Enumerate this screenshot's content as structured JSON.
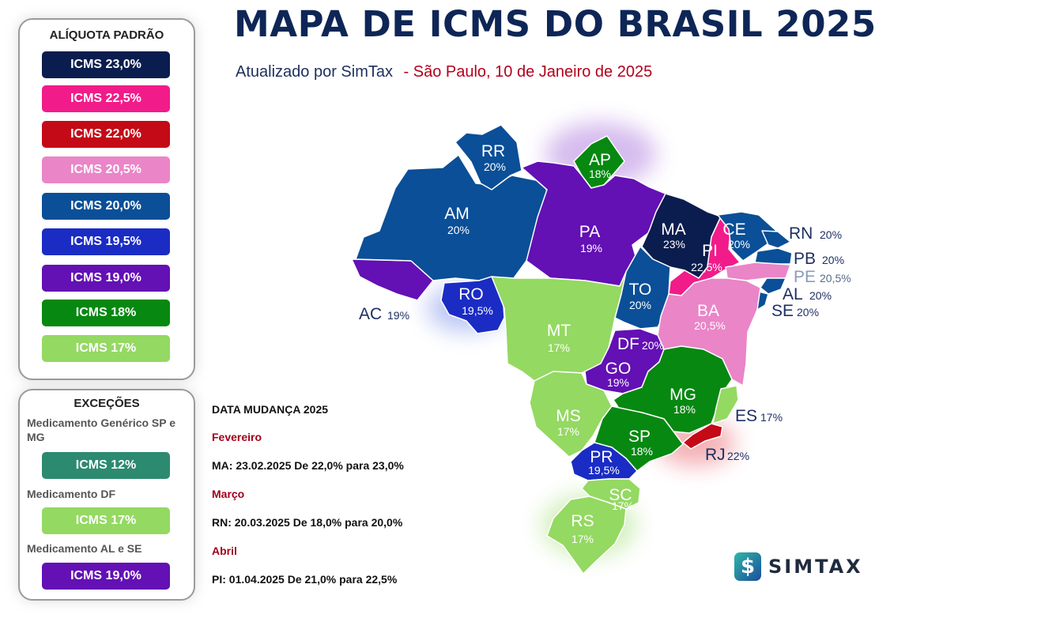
{
  "header": {
    "title": "MAPA DE ICMS DO BRASIL 2025",
    "subtitle_by": "Atualizado por SimTax",
    "subtitle_date": "- São Paulo, 10 de Janeiro de 2025"
  },
  "legend": {
    "title": "ALÍQUOTA PADRÃO",
    "items": [
      {
        "label": "ICMS 23,0%",
        "color": "#0b1d4e"
      },
      {
        "label": "ICMS 22,5%",
        "color": "#f21b8a"
      },
      {
        "label": "ICMS 22,0%",
        "color": "#c40a16"
      },
      {
        "label": "ICMS 20,5%",
        "color": "#ea85c8"
      },
      {
        "label": "ICMS 20,0%",
        "color": "#0a4f97"
      },
      {
        "label": "ICMS 19,5%",
        "color": "#1a2cc4"
      },
      {
        "label": "ICMS 19,0%",
        "color": "#6310b4"
      },
      {
        "label": "ICMS 18%",
        "color": "#078811"
      },
      {
        "label": "ICMS 17%",
        "color": "#94d962"
      }
    ]
  },
  "exceptions": {
    "title": "EXCEÇÕES",
    "items": [
      {
        "label": "Medicamento Genérico SP e MG",
        "pill": "ICMS 12%",
        "color": "#2c8a70"
      },
      {
        "label": "Medicamento DF",
        "pill": "ICMS 17%",
        "color": "#94d962"
      },
      {
        "label": "Medicamento AL e SE",
        "pill": "ICMS 19,0%",
        "color": "#6310b4"
      }
    ]
  },
  "changes": {
    "heading": "DATA MUDANÇA 2025",
    "entries": [
      {
        "month": "Fevereiro",
        "text": "MA: 23.02.2025 De 22,0% para 23,0%"
      },
      {
        "month": "Março",
        "text": "RN: 20.03.2025 De 18,0% para 20,0%"
      },
      {
        "month": "Abril",
        "text": "PI: 01.04.2025 De 21,0% para 22,5%"
      }
    ]
  },
  "states": [
    {
      "code": "RR",
      "rate": "20%",
      "color": "#0a4f97"
    },
    {
      "code": "AP",
      "rate": "18%",
      "color": "#078811"
    },
    {
      "code": "AM",
      "rate": "20%",
      "color": "#0a4f97"
    },
    {
      "code": "PA",
      "rate": "19%",
      "color": "#6310b4"
    },
    {
      "code": "MA",
      "rate": "23%",
      "color": "#0b1d4e"
    },
    {
      "code": "CE",
      "rate": "20%",
      "color": "#0a4f97"
    },
    {
      "code": "PI",
      "rate": "22,5%",
      "color": "#f21b8a"
    },
    {
      "code": "RN",
      "rate": "20%",
      "color": "#0a4f97"
    },
    {
      "code": "PB",
      "rate": "20%",
      "color": "#0a4f97"
    },
    {
      "code": "PE",
      "rate": "20,5%",
      "color": "#ea85c8"
    },
    {
      "code": "AL",
      "rate": "20%",
      "color": "#0a4f97"
    },
    {
      "code": "SE",
      "rate": "20%",
      "color": "#0a4f97"
    },
    {
      "code": "AC",
      "rate": "19%",
      "color": "#6310b4"
    },
    {
      "code": "RO",
      "rate": "19,5%",
      "color": "#1a2cc4"
    },
    {
      "code": "TO",
      "rate": "20%",
      "color": "#0a4f97"
    },
    {
      "code": "BA",
      "rate": "20,5%",
      "color": "#ea85c8"
    },
    {
      "code": "MT",
      "rate": "17%",
      "color": "#94d962"
    },
    {
      "code": "DF",
      "rate": "20%",
      "color": "#0a4f97"
    },
    {
      "code": "GO",
      "rate": "19%",
      "color": "#6310b4"
    },
    {
      "code": "MG",
      "rate": "18%",
      "color": "#078811"
    },
    {
      "code": "ES",
      "rate": "17%",
      "color": "#94d962"
    },
    {
      "code": "MS",
      "rate": "17%",
      "color": "#94d962"
    },
    {
      "code": "SP",
      "rate": "18%",
      "color": "#078811"
    },
    {
      "code": "RJ",
      "rate": "22%",
      "color": "#c40a16"
    },
    {
      "code": "PR",
      "rate": "19,5%",
      "color": "#1a2cc4"
    },
    {
      "code": "SC",
      "rate": "17%",
      "color": "#94d962"
    },
    {
      "code": "RS",
      "rate": "17%",
      "color": "#94d962"
    }
  ],
  "logo": {
    "mark": "$",
    "text": "SIMTAX"
  }
}
